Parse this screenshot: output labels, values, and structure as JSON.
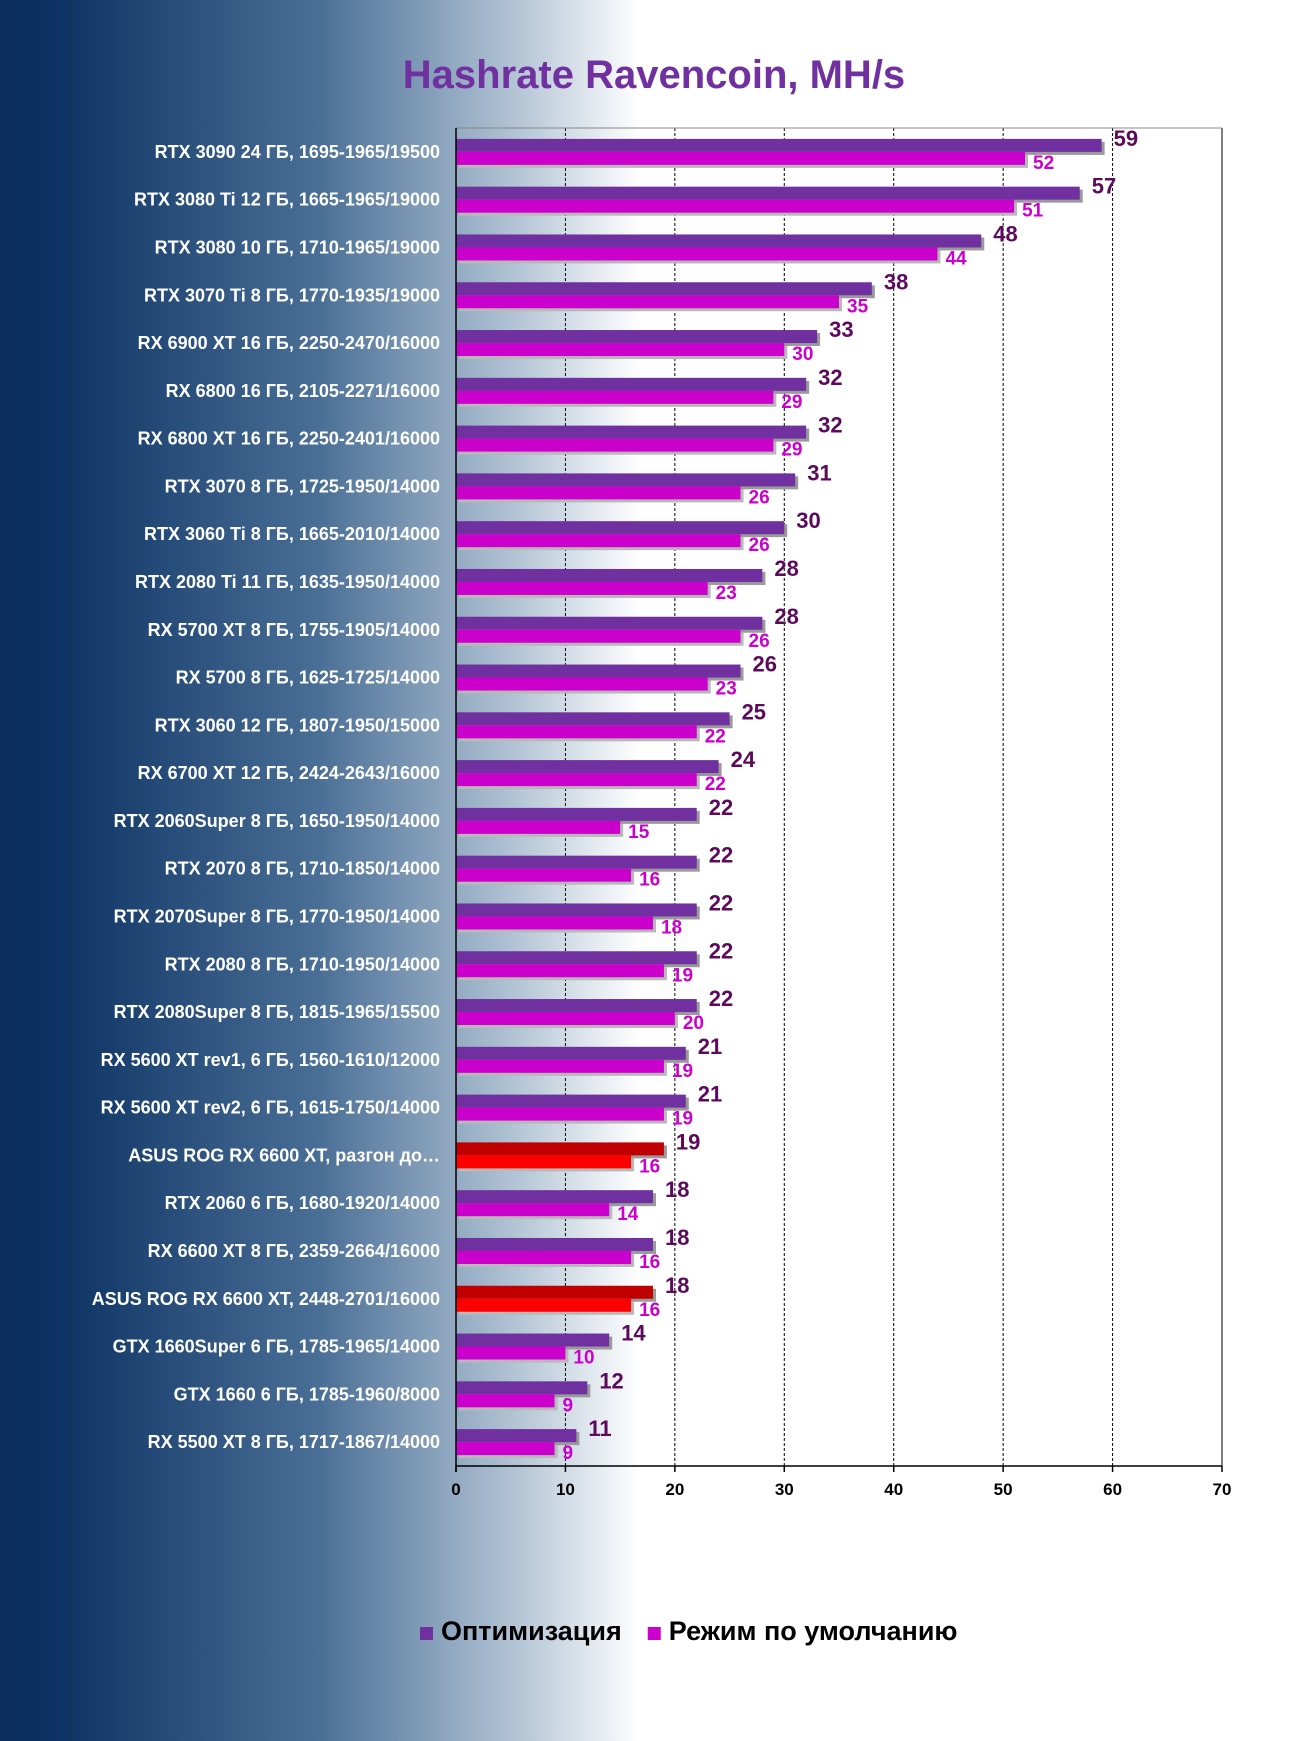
{
  "chart_data": {
    "type": "bar",
    "orientation": "horizontal",
    "title": "Hashrate Ravencoin, MH/s",
    "xlim": [
      0,
      70
    ],
    "xticks": [
      0,
      10,
      20,
      30,
      40,
      50,
      60,
      70
    ],
    "grid": true,
    "legend_position": "bottom",
    "categories": [
      "RTX 3090 24 ГБ, 1695-1965/19500",
      "RTX 3080 Ti 12 ГБ, 1665-1965/19000",
      "RTX 3080 10 ГБ, 1710-1965/19000",
      "RTX 3070 Ti 8 ГБ, 1770-1935/19000",
      "RX 6900 XT 16 ГБ, 2250-2470/16000",
      "RX 6800 16 ГБ, 2105-2271/16000",
      "RX 6800 XT 16 ГБ, 2250-2401/16000",
      "RTX 3070 8 ГБ, 1725-1950/14000",
      "RTX 3060 Ti 8 ГБ, 1665-2010/14000",
      "RTX 2080 Ti 11 ГБ, 1635-1950/14000",
      "RX 5700 XT 8 ГБ, 1755-1905/14000",
      "RX 5700 8 ГБ, 1625-1725/14000",
      "RTX 3060 12 ГБ, 1807-1950/15000",
      "RX 6700 XT 12 ГБ, 2424-2643/16000",
      "RTX 2060Super 8 ГБ, 1650-1950/14000",
      "RTX 2070 8 ГБ, 1710-1850/14000",
      "RTX 2070Super 8 ГБ, 1770-1950/14000",
      "RTX 2080 8 ГБ, 1710-1950/14000",
      "RTX 2080Super 8 ГБ, 1815-1965/15500",
      "RX 5600 XT rev1, 6 ГБ, 1560-1610/12000",
      "RX 5600 XT rev2, 6 ГБ, 1615-1750/14000",
      "ASUS ROG RX 6600 XT, разгон до…",
      "RTX 2060 6 ГБ, 1680-1920/14000",
      "RX 6600 XT 8 ГБ, 2359-2664/16000",
      "ASUS ROG RX 6600 XT, 2448-2701/16000",
      "GTX 1660Super 6 ГБ, 1785-1965/14000",
      "GTX 1660 6 ГБ, 1785-1960/8000",
      "RX 5500 XT 8 ГБ, 1717-1867/14000"
    ],
    "highlighted": [
      21,
      24
    ],
    "series": [
      {
        "name": "Оптимизация",
        "color": "#7030a0",
        "highlight_color": "#c00000",
        "label_color": "#5c0a5c",
        "values": [
          59,
          57,
          48,
          38,
          33,
          32,
          32,
          31,
          30,
          28,
          28,
          26,
          25,
          24,
          22,
          22,
          22,
          22,
          22,
          21,
          21,
          19,
          18,
          18,
          18,
          14,
          12,
          11
        ]
      },
      {
        "name": "Режим по умолчанию",
        "color": "#cc00cc",
        "highlight_color": "#ff0000",
        "label_color": "#cc00cc",
        "values": [
          52,
          51,
          44,
          35,
          30,
          29,
          29,
          26,
          26,
          23,
          26,
          23,
          22,
          22,
          15,
          16,
          18,
          19,
          20,
          19,
          19,
          16,
          14,
          16,
          16,
          10,
          9,
          9
        ]
      }
    ]
  }
}
